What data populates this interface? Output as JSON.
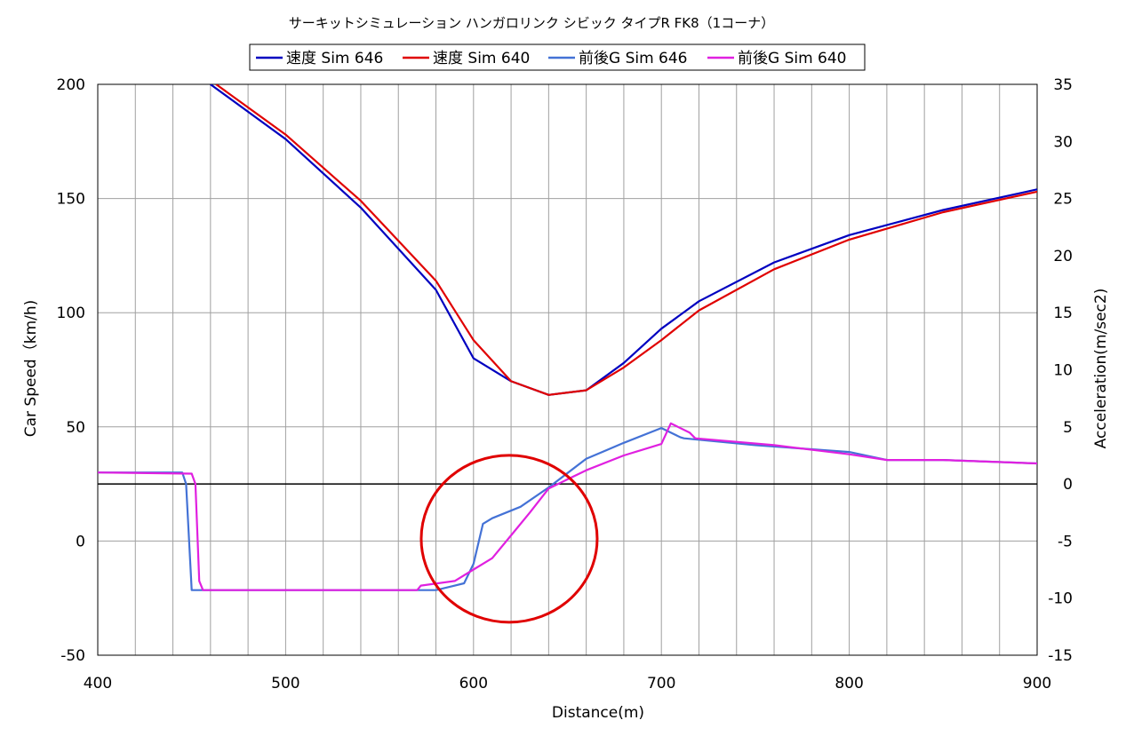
{
  "chart_data": {
    "type": "line",
    "title": "サーキットシミュレーション ハンガロリンク シビック タイプR FK8（1コーナ）",
    "xlabel": "Distance(m)",
    "ylabel": "Car Speed（km/h)",
    "y2label": "Acceleration(m/sec2)",
    "xlim": [
      400,
      900
    ],
    "ylim": [
      -50,
      200
    ],
    "y2lim": [
      -15,
      35
    ],
    "x_ticks": [
      "400",
      "500",
      "600",
      "700",
      "800",
      "900"
    ],
    "y_ticks": [
      "-50",
      "0",
      "50",
      "100",
      "150",
      "200"
    ],
    "y2_ticks": [
      "-15",
      "-10",
      "-5",
      "0",
      "5",
      "10",
      "15",
      "20",
      "25",
      "30",
      "35"
    ],
    "grid": true,
    "legend_position": "top",
    "series": [
      {
        "name": "速度 Sim 646",
        "axis": "left",
        "color": "#0000c0",
        "x": [
          460,
          500,
          540,
          580,
          600,
          620,
          640,
          660,
          680,
          700,
          720,
          760,
          800,
          850,
          900
        ],
        "y": [
          200,
          176,
          146,
          110,
          80,
          70,
          64,
          66,
          78,
          93,
          105,
          122,
          134,
          145,
          154
        ]
      },
      {
        "name": "速度 Sim 640",
        "axis": "left",
        "color": "#e00000",
        "x": [
          463,
          500,
          540,
          580,
          600,
          620,
          640,
          660,
          680,
          700,
          720,
          760,
          800,
          850,
          900
        ],
        "y": [
          200,
          178,
          149,
          114,
          88,
          70,
          64,
          66,
          76,
          88,
          101,
          119,
          132,
          144,
          153
        ]
      },
      {
        "name": "前後G Sim 646",
        "axis": "right",
        "color": "#4472d6",
        "x": [
          400,
          445,
          447,
          450,
          455,
          480,
          520,
          560,
          580,
          595,
          600,
          605,
          610,
          625,
          640,
          660,
          680,
          700,
          710,
          712,
          750,
          800,
          820,
          850,
          900
        ],
        "y": [
          1,
          1,
          0,
          -9.3,
          -9.3,
          -9.3,
          -9.3,
          -9.3,
          -9.3,
          -8.7,
          -7,
          -3.5,
          -3,
          -2,
          -0.3,
          2.2,
          3.6,
          4.9,
          4.1,
          4,
          3.4,
          2.8,
          2.1,
          2.1,
          1.8
        ]
      },
      {
        "name": "前後G Sim 640",
        "axis": "right",
        "color": "#e020e0",
        "x": [
          400,
          450,
          452,
          454,
          456,
          480,
          520,
          560,
          570,
          572,
          590,
          600,
          610,
          620,
          630,
          640,
          660,
          680,
          700,
          705,
          715,
          718,
          760,
          800,
          820,
          850,
          900
        ],
        "y": [
          1,
          0.9,
          0,
          -8.5,
          -9.3,
          -9.3,
          -9.3,
          -9.3,
          -9.3,
          -8.9,
          -8.5,
          -7.5,
          -6.5,
          -4.5,
          -2.5,
          -0.4,
          1.2,
          2.5,
          3.5,
          5.3,
          4.5,
          4,
          3.4,
          2.6,
          2.1,
          2.1,
          1.8
        ]
      }
    ],
    "annotations": [
      {
        "type": "circle",
        "color": "#e00000",
        "cx": 619,
        "cy_speed": 1,
        "label": ""
      }
    ]
  }
}
